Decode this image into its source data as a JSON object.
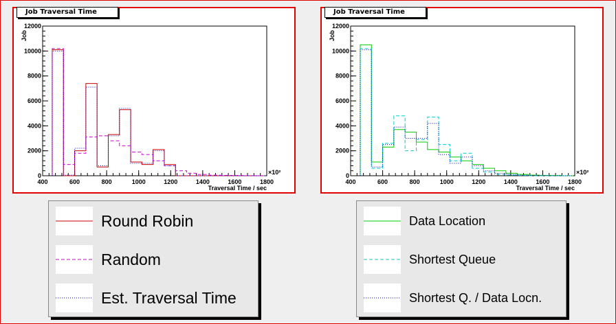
{
  "panels": {
    "left": {
      "title": "Job Traversal Time"
    },
    "right": {
      "title": "Job Traversal Time"
    }
  },
  "legend_left": [
    {
      "label": "Round Robin",
      "color": "#cc0000",
      "dash": "solid"
    },
    {
      "label": "Random",
      "color": "#cc00cc",
      "dash": "dashed"
    },
    {
      "label": "Est. Traversal Time",
      "color": "#0000cc",
      "dash": "dotted"
    }
  ],
  "legend_right": [
    {
      "label": "Data Location",
      "color": "#00cc00",
      "dash": "solid"
    },
    {
      "label": "Shortest Queue",
      "color": "#00cccc",
      "dash": "dashed"
    },
    {
      "label": "Shortest Q. / Data Locn.",
      "color": "#0000cc",
      "dash": "dotted"
    }
  ],
  "chart_data": [
    {
      "type": "histogram",
      "title": "Job Traversal Time",
      "xlabel": "Traversal Time / sec",
      "ylabel": "Job",
      "xaxis_multiplier": "×10²",
      "xlim": [
        400,
        1800
      ],
      "ylim": [
        0,
        12000
      ],
      "xticks": [
        "400",
        "600",
        "800",
        "1000",
        "1200",
        "1400",
        "1600",
        "1800"
      ],
      "yticks": [
        "0",
        "2000",
        "4000",
        "6000",
        "8000",
        "10000",
        "12000"
      ],
      "bin_edges": [
        460,
        530,
        600,
        670,
        740,
        810,
        880,
        950,
        1020,
        1090,
        1160,
        1230,
        1300,
        1370,
        1440,
        1510,
        1580,
        1650,
        1720,
        1790
      ],
      "series": [
        {
          "name": "Round Robin",
          "color": "#cc0000",
          "dash": "solid",
          "values": [
            10100,
            0,
            2000,
            7400,
            700,
            3300,
            5300,
            1100,
            900,
            2100,
            900,
            0,
            0,
            0,
            0,
            0,
            0,
            0,
            0
          ]
        },
        {
          "name": "Random",
          "color": "#cc00cc",
          "dash": "dashed",
          "values": [
            10200,
            900,
            1800,
            3100,
            3200,
            2800,
            2400,
            1900,
            1700,
            1200,
            800,
            400,
            200,
            100,
            50,
            30,
            20,
            10,
            0
          ]
        },
        {
          "name": "Est. Traversal Time",
          "color": "#0000cc",
          "dash": "dotted",
          "values": [
            10000,
            50,
            2200,
            7100,
            800,
            3200,
            5400,
            1000,
            1000,
            2000,
            800,
            0,
            0,
            0,
            0,
            0,
            0,
            0,
            0
          ]
        }
      ]
    },
    {
      "type": "histogram",
      "title": "Job Traversal Time",
      "xlabel": "Traversal Time / sec",
      "ylabel": "Job",
      "xaxis_multiplier": "×10²",
      "xlim": [
        400,
        1800
      ],
      "ylim": [
        0,
        12000
      ],
      "xticks": [
        "400",
        "600",
        "800",
        "1000",
        "1200",
        "1400",
        "1600",
        "1800"
      ],
      "yticks": [
        "0",
        "2000",
        "4000",
        "6000",
        "8000",
        "10000",
        "12000"
      ],
      "bin_edges": [
        460,
        530,
        600,
        670,
        740,
        810,
        880,
        950,
        1020,
        1090,
        1160,
        1230,
        1300,
        1370,
        1440,
        1510,
        1580,
        1650,
        1720,
        1790
      ],
      "series": [
        {
          "name": "Data Location",
          "color": "#00cc00",
          "dash": "solid",
          "values": [
            10500,
            1100,
            2300,
            3700,
            3500,
            2700,
            2100,
            1900,
            1500,
            1200,
            900,
            600,
            400,
            200,
            100,
            50,
            30,
            20,
            0
          ]
        },
        {
          "name": "Shortest Queue",
          "color": "#00cccc",
          "dash": "dashed",
          "values": [
            10200,
            600,
            2600,
            4800,
            2000,
            2900,
            4700,
            2500,
            1200,
            1800,
            600,
            300,
            100,
            50,
            20,
            0,
            0,
            0,
            0
          ]
        },
        {
          "name": "Shortest Q. / Data Locn.",
          "color": "#0000cc",
          "dash": "dotted",
          "values": [
            10100,
            700,
            2500,
            3900,
            3000,
            3000,
            4200,
            1700,
            1000,
            1500,
            800,
            400,
            200,
            100,
            50,
            30,
            20,
            10,
            0
          ]
        }
      ]
    }
  ]
}
